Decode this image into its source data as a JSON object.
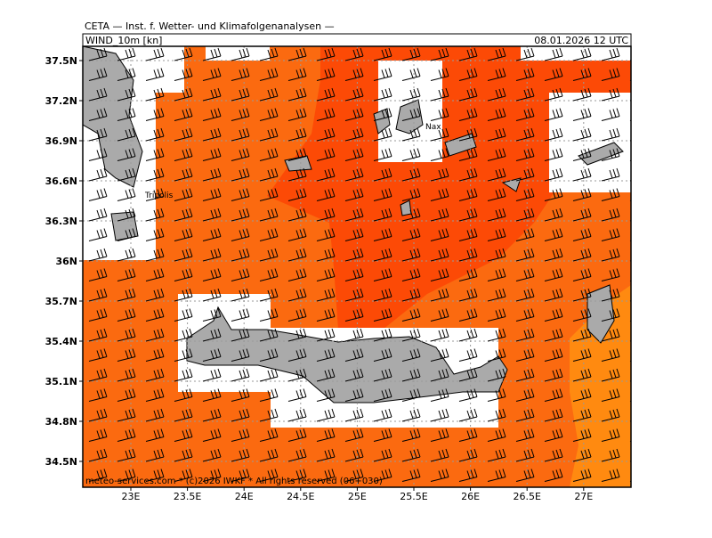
{
  "header": {
    "institute": "CETA — Inst. f. Wetter- und Klimafolgenanalysen —",
    "field": "WIND_10m [kn]",
    "valid_time": "08.01.2026 12 UTC"
  },
  "map": {
    "lon_ticks": [
      {
        "value": 23,
        "label": "23E"
      },
      {
        "value": 23.5,
        "label": "23.5E"
      },
      {
        "value": 24,
        "label": "24E"
      },
      {
        "value": 24.5,
        "label": "24.5E"
      },
      {
        "value": 25,
        "label": "25E"
      },
      {
        "value": 25.5,
        "label": "25.5E"
      },
      {
        "value": 26,
        "label": "26E"
      },
      {
        "value": 26.5,
        "label": "26.5E"
      },
      {
        "value": 27,
        "label": "27E"
      }
    ],
    "lat_ticks": [
      {
        "value": 37.5,
        "label": "37.5N"
      },
      {
        "value": 37.2,
        "label": "37.2N"
      },
      {
        "value": 36.9,
        "label": "36.9N"
      },
      {
        "value": 36.6,
        "label": "36.6N"
      },
      {
        "value": 36.3,
        "label": "36.3N"
      },
      {
        "value": 36,
        "label": "36N"
      },
      {
        "value": 35.7,
        "label": "35.7N"
      },
      {
        "value": 35.4,
        "label": "35.4N"
      },
      {
        "value": 35.1,
        "label": "35.1N"
      },
      {
        "value": 34.8,
        "label": "34.8N"
      },
      {
        "value": 34.5,
        "label": "34.5N"
      }
    ],
    "places": [
      "Tripolis",
      "Nax"
    ]
  },
  "footer": "meteo-services.com * (c)2026 IWKF * All rights reserved (06+030)"
}
